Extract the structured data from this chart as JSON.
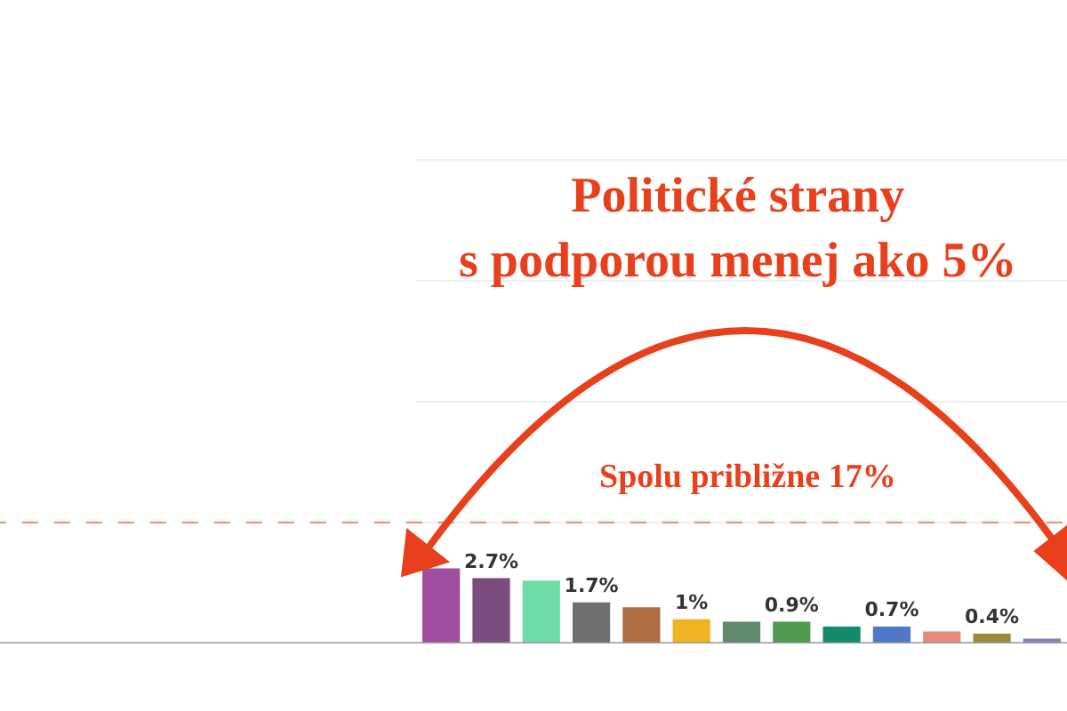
{
  "chart_data": {
    "type": "bar",
    "categories": [
      null,
      null,
      null,
      null,
      null,
      null,
      null,
      null,
      null,
      null,
      null,
      null,
      null
    ],
    "values": [
      3.1,
      2.7,
      2.6,
      1.7,
      1.5,
      1.0,
      0.9,
      0.9,
      0.7,
      0.7,
      0.5,
      0.4,
      0.2
    ],
    "colors": [
      "#a24ea0",
      "#7b4a7e",
      "#6fdca8",
      "#6f6f6f",
      "#b06c45",
      "#f0b323",
      "#5f8a6c",
      "#4f9a4e",
      "#138a6c",
      "#4f78c8",
      "#e8887a",
      "#9a8a3a",
      "#8e7ab8"
    ],
    "value_labels": [
      null,
      "2.7%",
      null,
      "1.7%",
      null,
      "1%",
      null,
      "0.9%",
      null,
      "0.7%",
      null,
      "0.4%",
      null
    ],
    "ylim": [
      0,
      26.6
    ],
    "yticks": [
      {
        "value": 5,
        "label": null
      },
      {
        "value": 10,
        "label": null
      },
      {
        "value": 15,
        "label": null
      },
      {
        "value": 20,
        "label": null
      }
    ],
    "grid": "y",
    "ref_lines": [
      {
        "axis": "y",
        "value": 5,
        "color": "#e8967a",
        "line_style": "dashed"
      }
    ],
    "annotations": [
      "Politické strany\ns podporou menej ako 5%",
      "Spolu približne 17%"
    ]
  }
}
